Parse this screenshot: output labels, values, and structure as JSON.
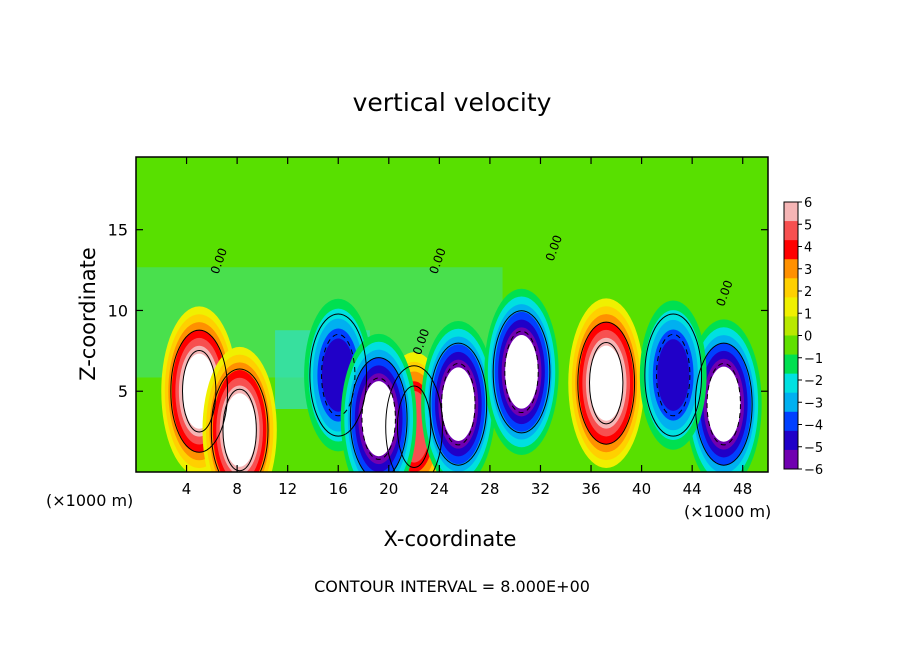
{
  "chart_data": {
    "type": "heatmap",
    "title": "vertical velocity",
    "xlabel": "X-coordinate",
    "ylabel": "Z-coordinate",
    "x_units_left": "(×1000 m)",
    "x_units_right": "(×1000 m)",
    "xlim": [
      0,
      50
    ],
    "ylim": [
      0,
      19.5
    ],
    "xticks": [
      "4",
      "8",
      "12",
      "16",
      "20",
      "24",
      "28",
      "32",
      "36",
      "40",
      "44",
      "48"
    ],
    "yticks": [
      "5",
      "10",
      "15"
    ],
    "colorbar": {
      "min": -6,
      "max": 6,
      "tick_labels": [
        "6",
        "5",
        "4",
        "3",
        "2",
        "1",
        "0",
        "−1",
        "−2",
        "−3",
        "−4",
        "−5",
        "−6"
      ],
      "colors": [
        "#f5b5b5",
        "#f75050",
        "#ff0000",
        "#ff9000",
        "#ffd000",
        "#f0f000",
        "#b8e800",
        "#60e000",
        "#00e050",
        "#00e0e0",
        "#00b0f0",
        "#0040ff",
        "#2000c8",
        "#7000b0"
      ]
    },
    "contour_interval_text": "CONTOUR INTERVAL = 8.000E+00",
    "contour_labels": [
      "0.00",
      "0.00",
      "0.00",
      "0.00",
      "0.00"
    ],
    "features": [
      {
        "x": 5,
        "z": 5.0,
        "sign": "up",
        "strength": 1.0
      },
      {
        "x": 8.2,
        "z": 2.6,
        "sign": "up",
        "strength": 0.95
      },
      {
        "x": 37.2,
        "z": 5.5,
        "sign": "up",
        "strength": 1.0
      },
      {
        "x": 22.0,
        "z": 2.8,
        "sign": "up",
        "strength": 0.7
      },
      {
        "x": 16.0,
        "z": 6.0,
        "sign": "down",
        "strength": 0.75
      },
      {
        "x": 19.2,
        "z": 3.3,
        "sign": "down",
        "strength": 1.0
      },
      {
        "x": 25.5,
        "z": 4.2,
        "sign": "down",
        "strength": 0.95
      },
      {
        "x": 30.5,
        "z": 6.2,
        "sign": "down",
        "strength": 0.95
      },
      {
        "x": 46.5,
        "z": 4.2,
        "sign": "down",
        "strength": 1.0
      },
      {
        "x": 42.5,
        "z": 6.0,
        "sign": "down",
        "strength": 0.7
      }
    ]
  }
}
